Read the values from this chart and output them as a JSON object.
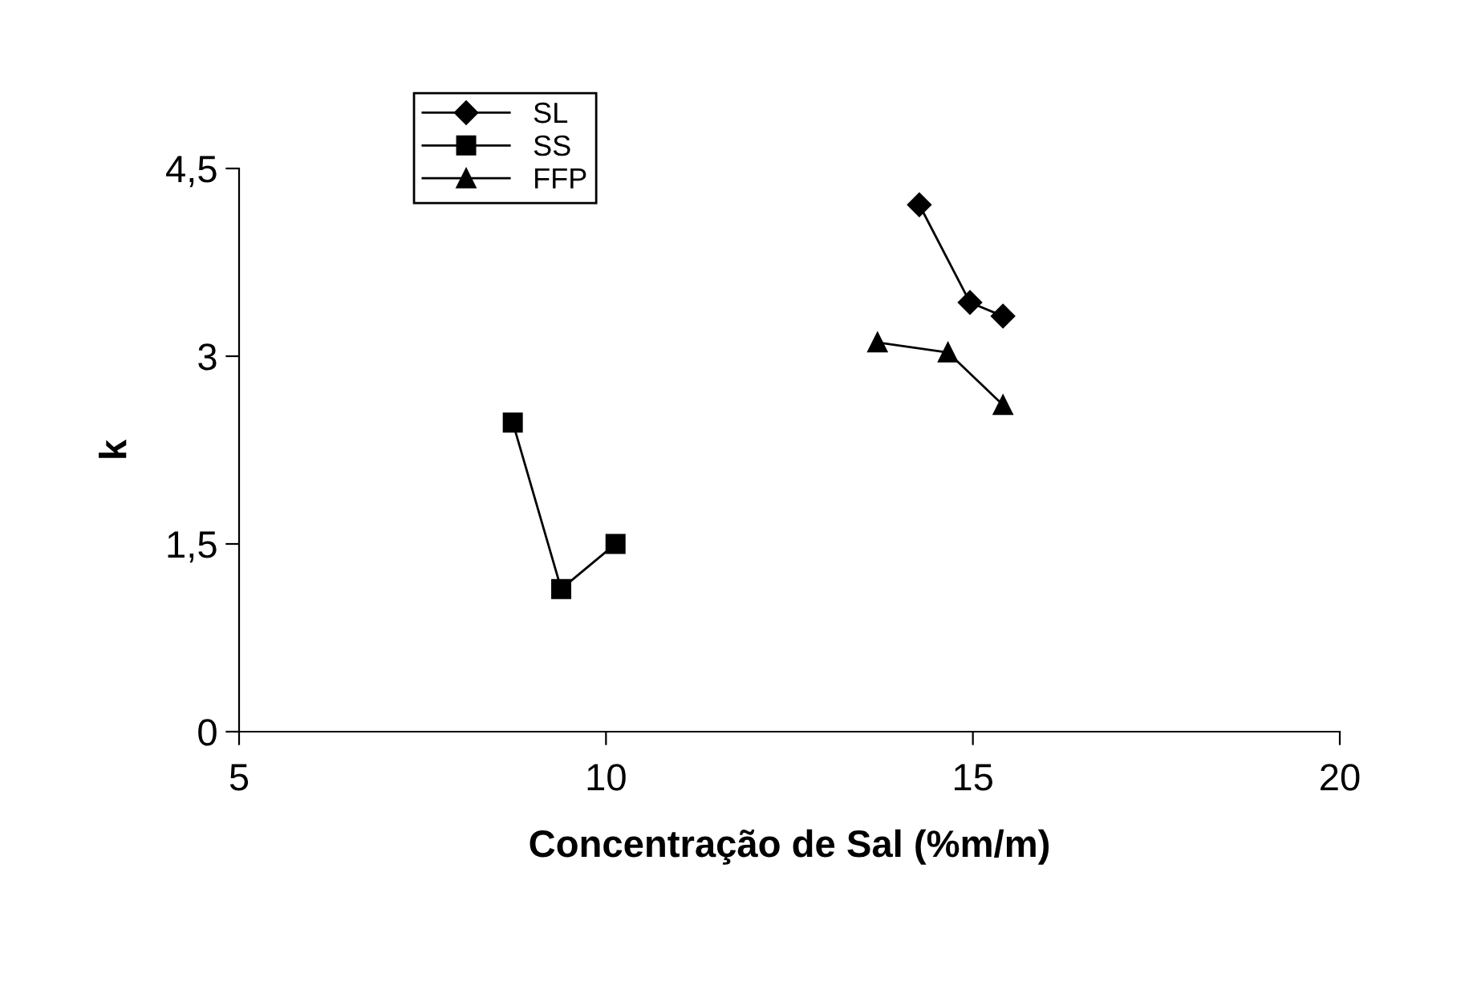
{
  "chart_data": {
    "type": "line",
    "xlabel": "Concentração de Sal (%m/m)",
    "ylabel": "k",
    "xlim": [
      5,
      20
    ],
    "xticks": [
      5,
      10,
      15,
      20
    ],
    "ylim": [
      0,
      4.5
    ],
    "yticks": [
      0,
      {
        "value": 1.5,
        "label": "1,5"
      },
      3,
      {
        "value": 4.5,
        "label": "4,5"
      }
    ],
    "grid": false,
    "legend": "top left",
    "series": [
      {
        "name": "SL",
        "color": "#000000",
        "marker": "diamond",
        "x": [
          14.27,
          14.96,
          15.41
        ],
        "values": [
          4.21,
          3.43,
          3.32
        ]
      },
      {
        "name": "SS",
        "color": "#000000",
        "marker": "square",
        "x": [
          8.73,
          9.39,
          10.13
        ],
        "values": [
          2.47,
          1.14,
          1.5
        ]
      },
      {
        "name": "FFP",
        "color": "#000000",
        "marker": "triangle",
        "x": [
          13.7,
          14.66,
          15.41
        ],
        "values": [
          3.11,
          3.03,
          2.61
        ]
      }
    ]
  }
}
